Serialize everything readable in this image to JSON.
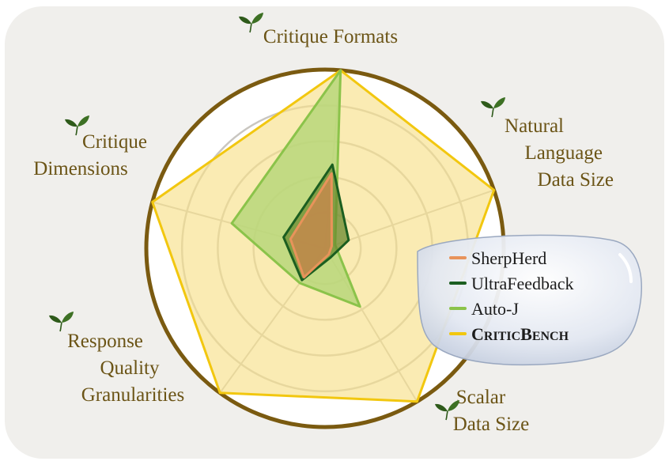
{
  "chart_data": {
    "type": "radar",
    "axes": [
      {
        "key": "formats",
        "label_lines": [
          "Critique Formats"
        ]
      },
      {
        "key": "nl_size",
        "label_lines": [
          "Natural",
          "Language",
          "Data Size"
        ]
      },
      {
        "key": "scalar_size",
        "label_lines": [
          "Scalar",
          "Data Size"
        ]
      },
      {
        "key": "granularities",
        "label_lines": [
          "Response",
          "Quality",
          "Granularities"
        ]
      },
      {
        "key": "dimensions",
        "label_lines": [
          "Critique",
          "Dimensions"
        ]
      }
    ],
    "range": [
      0,
      1
    ],
    "rings": 4,
    "series": [
      {
        "name": "CriticBench",
        "name_main": "C",
        "name_rest": "RITIC",
        "name_main2": "B",
        "name_rest2": "ENCH",
        "bold": true,
        "color": "#f2c70f",
        "fill": "#f7e08a",
        "values": [
          1.0,
          1.0,
          1.0,
          1.0,
          1.0
        ]
      },
      {
        "name": "Auto-J",
        "color": "#8bc34a",
        "fill": "#b7d77a",
        "values": [
          1.0,
          0.06,
          0.38,
          0.24,
          0.54
        ]
      },
      {
        "name": "UltraFeedback",
        "color": "#1b5e20",
        "fill": "#6a8a2f",
        "values": [
          0.47,
          0.14,
          0.06,
          0.22,
          0.24
        ]
      },
      {
        "name": "SherpHerd",
        "color": "#e8935a",
        "fill": "#c48a4c",
        "values": [
          0.42,
          0.04,
          0.04,
          0.2,
          0.2
        ]
      }
    ],
    "legend_order": [
      "SherpHerd",
      "UltraFeedback",
      "Auto-J",
      "CriticBench"
    ],
    "legend_position": "right",
    "grid": true
  },
  "icons": {
    "axis_marker": "leaf-sprout-icon"
  },
  "colors": {
    "panel_bg": "#f0efec",
    "frame_ring": "#7a5a10",
    "grid": "#c9c6c0"
  }
}
